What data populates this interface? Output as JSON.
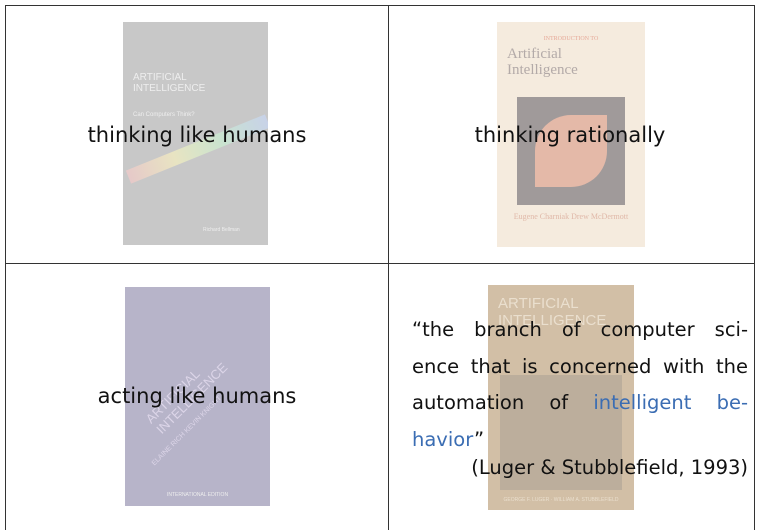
{
  "cells": [
    {
      "label": "thinking like humans",
      "cover": [
        "ARTIFICIAL INTELLIGENCE",
        "Can Computers Think?",
        "Richard Bellman"
      ]
    },
    {
      "label": "thinking rationally",
      "cover": [
        "INTRODUCTION TO",
        "Artificial Intelligence",
        "Eugene Charniak Drew McDermott"
      ]
    },
    {
      "label": "acting like humans",
      "cover": [
        "ARTIFICIAL INTELLIGENCE",
        "ELAINE RICH KEVIN KNIGHT",
        "INTERNATIONAL EDITION"
      ]
    },
    {
      "quote": [
        [
          {
            "text": "“the branch of computer sci-"
          }
        ],
        [
          {
            "text": "ence that is concerned with the"
          }
        ],
        [
          {
            "text": "automation of "
          },
          {
            "text": "intelligent be-",
            "link": true
          }
        ],
        [
          {
            "text": "havior",
            "link": true
          },
          {
            "text": "”"
          }
        ]
      ],
      "citation": "(Luger & Stubblefield, 1993)",
      "cover": [
        "ARTIFICIAL INTELLIGENCE",
        "GEORGE F. LUGER · WILLIAM A. STUBBLEFIELD"
      ]
    }
  ]
}
